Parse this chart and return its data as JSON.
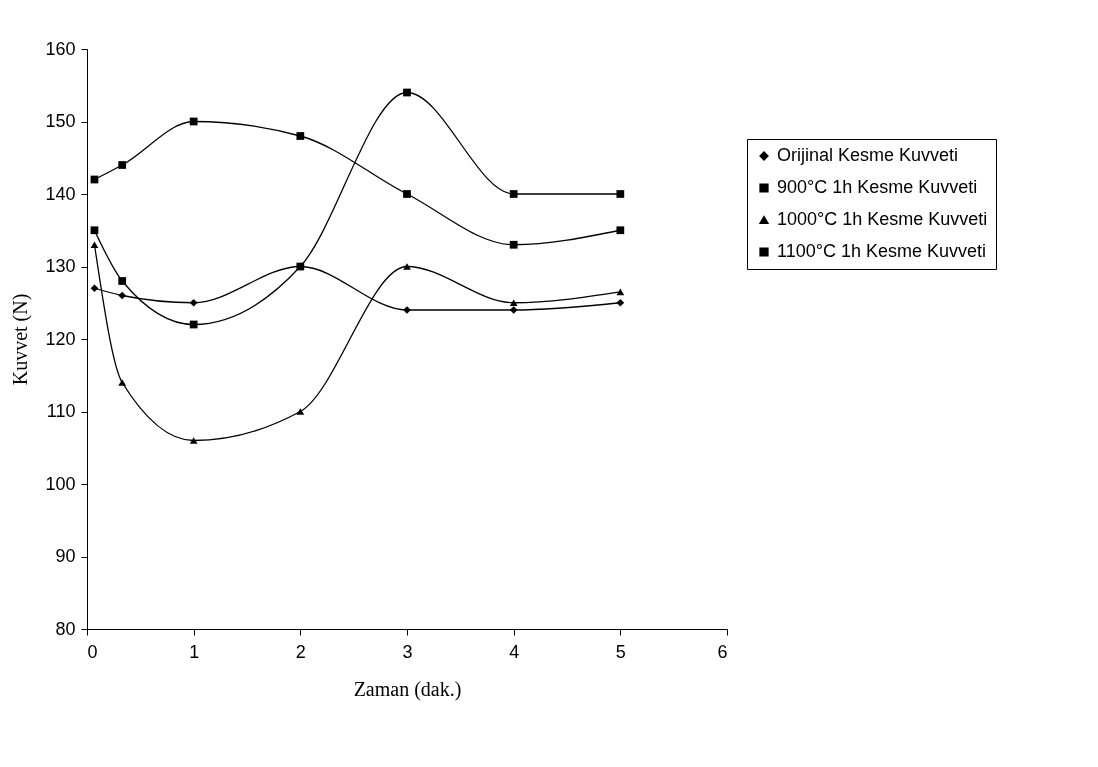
{
  "chart_data": {
    "type": "line",
    "xlabel": "Zaman (dak.)",
    "ylabel": "Kuvvet (N)",
    "x": [
      0.07,
      0.33,
      1,
      2,
      3,
      4,
      5
    ],
    "xlim": [
      0,
      6
    ],
    "xticks": [
      0,
      1,
      2,
      3,
      4,
      5,
      6
    ],
    "ylim": [
      80,
      160
    ],
    "yticks": [
      80,
      90,
      100,
      110,
      120,
      130,
      140,
      150,
      160
    ],
    "grid": false,
    "legend": "right",
    "series": [
      {
        "name": "Orijinal Kesme Kuvveti",
        "color": "#000000",
        "marker": "diamond",
        "values": [
          127,
          126,
          125,
          130,
          124,
          124,
          125
        ]
      },
      {
        "name": "900°C 1h Kesme Kuvveti",
        "color": "#000000",
        "marker": "square",
        "values": [
          142,
          144,
          150,
          148,
          140,
          133,
          135
        ]
      },
      {
        "name": "1000°C 1h Kesme Kuvveti",
        "color": "#000000",
        "marker": "triangle",
        "values": [
          133,
          114,
          106,
          110,
          130,
          125,
          126.5
        ]
      },
      {
        "name": "1100°C 1h Kesme Kuvveti",
        "color": "#000000",
        "marker": "square",
        "values": [
          135,
          128,
          122,
          130,
          154,
          140,
          140
        ]
      }
    ]
  }
}
